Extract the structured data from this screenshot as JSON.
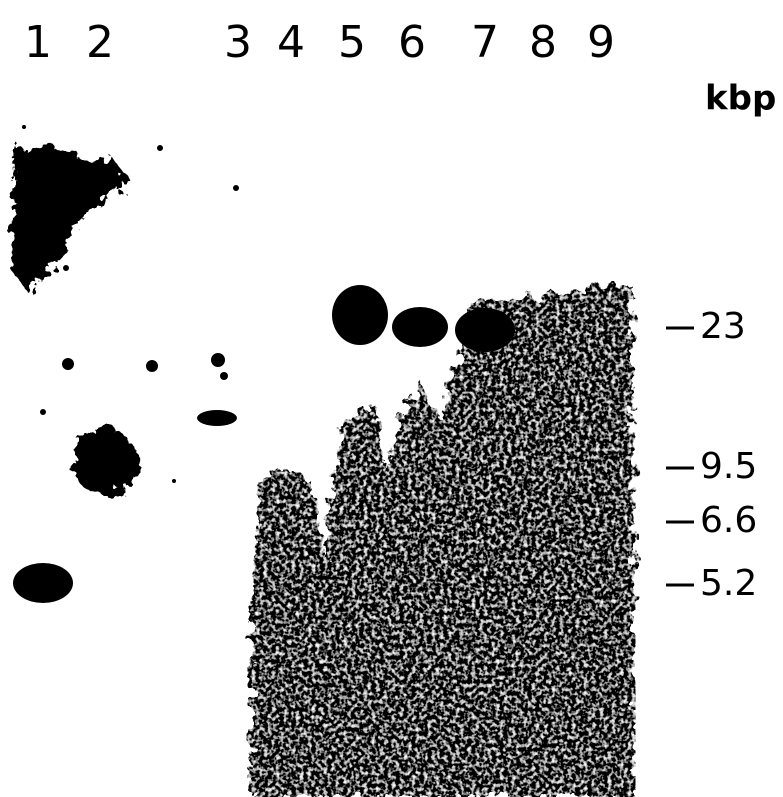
{
  "lanes": [
    "1",
    "2",
    "3",
    "4",
    "5",
    "6",
    "7",
    "8",
    "9"
  ],
  "unit": "kbp",
  "markers": [
    "23",
    "9.5",
    "6.6",
    "5.2"
  ]
}
